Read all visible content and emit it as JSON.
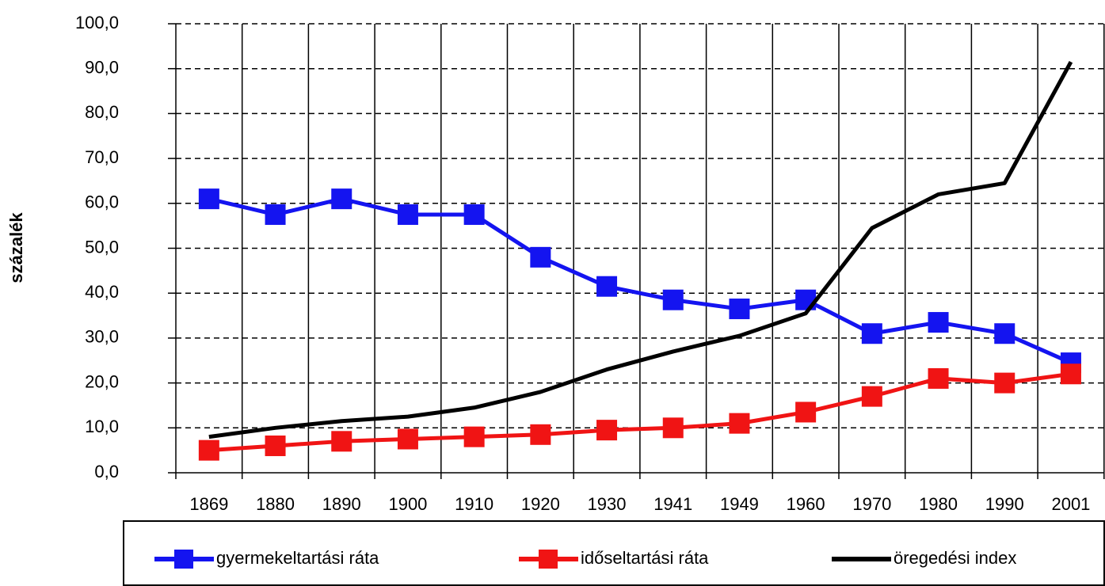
{
  "chart_data": {
    "type": "line",
    "y_label": "százalék",
    "categories": [
      "1869",
      "1880",
      "1890",
      "1900",
      "1910",
      "1920",
      "1930",
      "1941",
      "1949",
      "1960",
      "1970",
      "1980",
      "1990",
      "2001"
    ],
    "series": [
      {
        "name": "gyermekeltartási ráta",
        "color": "#1414f0",
        "marker": "square",
        "values": [
          61,
          57.5,
          61,
          57.5,
          57.5,
          48,
          41.5,
          38.5,
          36.5,
          38.5,
          31,
          33.5,
          31,
          24.5
        ]
      },
      {
        "name": "időseltartási ráta",
        "color": "#f01414",
        "marker": "square",
        "values": [
          5,
          6,
          7,
          7.5,
          8,
          8.5,
          9.5,
          10,
          11,
          13.5,
          17,
          21,
          20,
          22
        ]
      },
      {
        "name": "öregedési index",
        "color": "#000000",
        "marker": "none",
        "values": [
          8,
          10,
          11.5,
          12.5,
          14.5,
          18,
          23,
          27,
          30.5,
          35.5,
          54.5,
          62,
          64.5,
          91.5
        ]
      }
    ],
    "ylim": [
      0,
      100
    ],
    "yticks": [
      {
        "value": 0,
        "label": "0,0"
      },
      {
        "value": 10,
        "label": "10,0"
      },
      {
        "value": 20,
        "label": "20,0"
      },
      {
        "value": 30,
        "label": "30,0"
      },
      {
        "value": 40,
        "label": "40,0"
      },
      {
        "value": 50,
        "label": "50,0"
      },
      {
        "value": 60,
        "label": "60,0"
      },
      {
        "value": 70,
        "label": "70,0"
      },
      {
        "value": 80,
        "label": "80,0"
      },
      {
        "value": 90,
        "label": "90,0"
      },
      {
        "value": 100,
        "label": "100,0"
      }
    ],
    "grid": true,
    "legend": "bottom"
  }
}
